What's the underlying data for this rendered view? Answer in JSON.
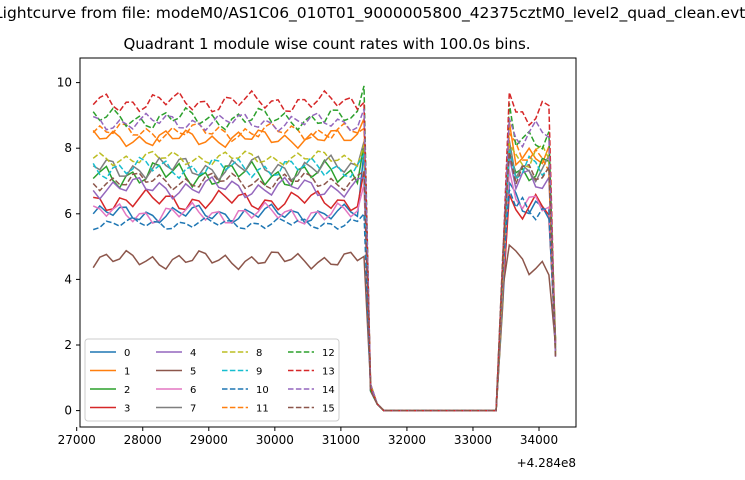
{
  "figure": {
    "suptitle": "Lightcurve from file: modeM0/AS1C06_010T01_9000005800_42375cztM0_level2_quad_clean.evt"
  },
  "chart_data": {
    "type": "line",
    "title": "Quadrant 1 module wise count rates with 100.0s bins.",
    "xlabel": "",
    "ylabel": "",
    "x_offset_label": "+4.284e8",
    "xlim": [
      27050,
      34560
    ],
    "ylim": [
      -0.5,
      10.75
    ],
    "xticks": [
      27000,
      28000,
      29000,
      30000,
      31000,
      32000,
      33000,
      34000
    ],
    "yticks": [
      0,
      2,
      4,
      6,
      8,
      10
    ],
    "legend_position": "lower-left",
    "legend_ncol": 4,
    "grid": false,
    "series": [
      {
        "name": "0",
        "color": "#1f77b4",
        "dash": "solid",
        "base": 6.0,
        "amp": 0.3,
        "spike": 7.9,
        "post": 6.3
      },
      {
        "name": "1",
        "color": "#ff7f0e",
        "dash": "solid",
        "base": 8.3,
        "amp": 0.3,
        "spike": 8.9,
        "post": 7.9
      },
      {
        "name": "2",
        "color": "#2ca02c",
        "dash": "solid",
        "base": 7.2,
        "amp": 0.45,
        "spike": 8.1,
        "post": 7.3
      },
      {
        "name": "3",
        "color": "#d62728",
        "dash": "solid",
        "base": 6.4,
        "amp": 0.35,
        "spike": 7.3,
        "post": 6.1
      },
      {
        "name": "4",
        "color": "#9467bd",
        "dash": "solid",
        "base": 6.8,
        "amp": 0.35,
        "spike": 7.1,
        "post": 6.9
      },
      {
        "name": "5",
        "color": "#8c564b",
        "dash": "solid",
        "base": 4.6,
        "amp": 0.3,
        "spike": 4.7,
        "post": 4.4
      },
      {
        "name": "6",
        "color": "#e377c2",
        "dash": "solid",
        "base": 6.0,
        "amp": 0.35,
        "spike": 6.9,
        "post": 6.5
      },
      {
        "name": "7",
        "color": "#7f7f7f",
        "dash": "solid",
        "base": 7.4,
        "amp": 0.4,
        "spike": 8.2,
        "post": 7.4
      },
      {
        "name": "8",
        "color": "#bcbd22",
        "dash": "dashed",
        "base": 7.7,
        "amp": 0.25,
        "spike": 8.1,
        "post": 7.7
      },
      {
        "name": "9",
        "color": "#17becf",
        "dash": "dashed",
        "base": 7.4,
        "amp": 0.35,
        "spike": 7.8,
        "post": 7.3
      },
      {
        "name": "10",
        "color": "#1f77b4",
        "dash": "dashed",
        "base": 5.7,
        "amp": 0.2,
        "spike": 6.0,
        "post": 6.0
      },
      {
        "name": "11",
        "color": "#ff7f0e",
        "dash": "dashed",
        "base": 8.5,
        "amp": 0.3,
        "spike": 8.6,
        "post": 7.8
      },
      {
        "name": "12",
        "color": "#2ca02c",
        "dash": "dashed",
        "base": 8.9,
        "amp": 0.35,
        "spike": 9.9,
        "post": 8.4
      },
      {
        "name": "13",
        "color": "#d62728",
        "dash": "dashed",
        "base": 9.4,
        "amp": 0.35,
        "spike": 9.4,
        "post": 9.1
      },
      {
        "name": "14",
        "color": "#9467bd",
        "dash": "dashed",
        "base": 8.8,
        "amp": 0.3,
        "spike": 9.2,
        "post": 8.4
      },
      {
        "name": "15",
        "color": "#8c564b",
        "dash": "dashed",
        "base": 7.0,
        "amp": 0.3,
        "spike": 7.3,
        "post": 7.1
      }
    ],
    "time_bins": {
      "start": 27250,
      "step": 100,
      "pre_end": 31250,
      "drop_start": 31350,
      "zero_start": 31550,
      "zero_end": 33350,
      "rise_peak": 33550,
      "end": 34250,
      "end_value": 2.2
    }
  }
}
